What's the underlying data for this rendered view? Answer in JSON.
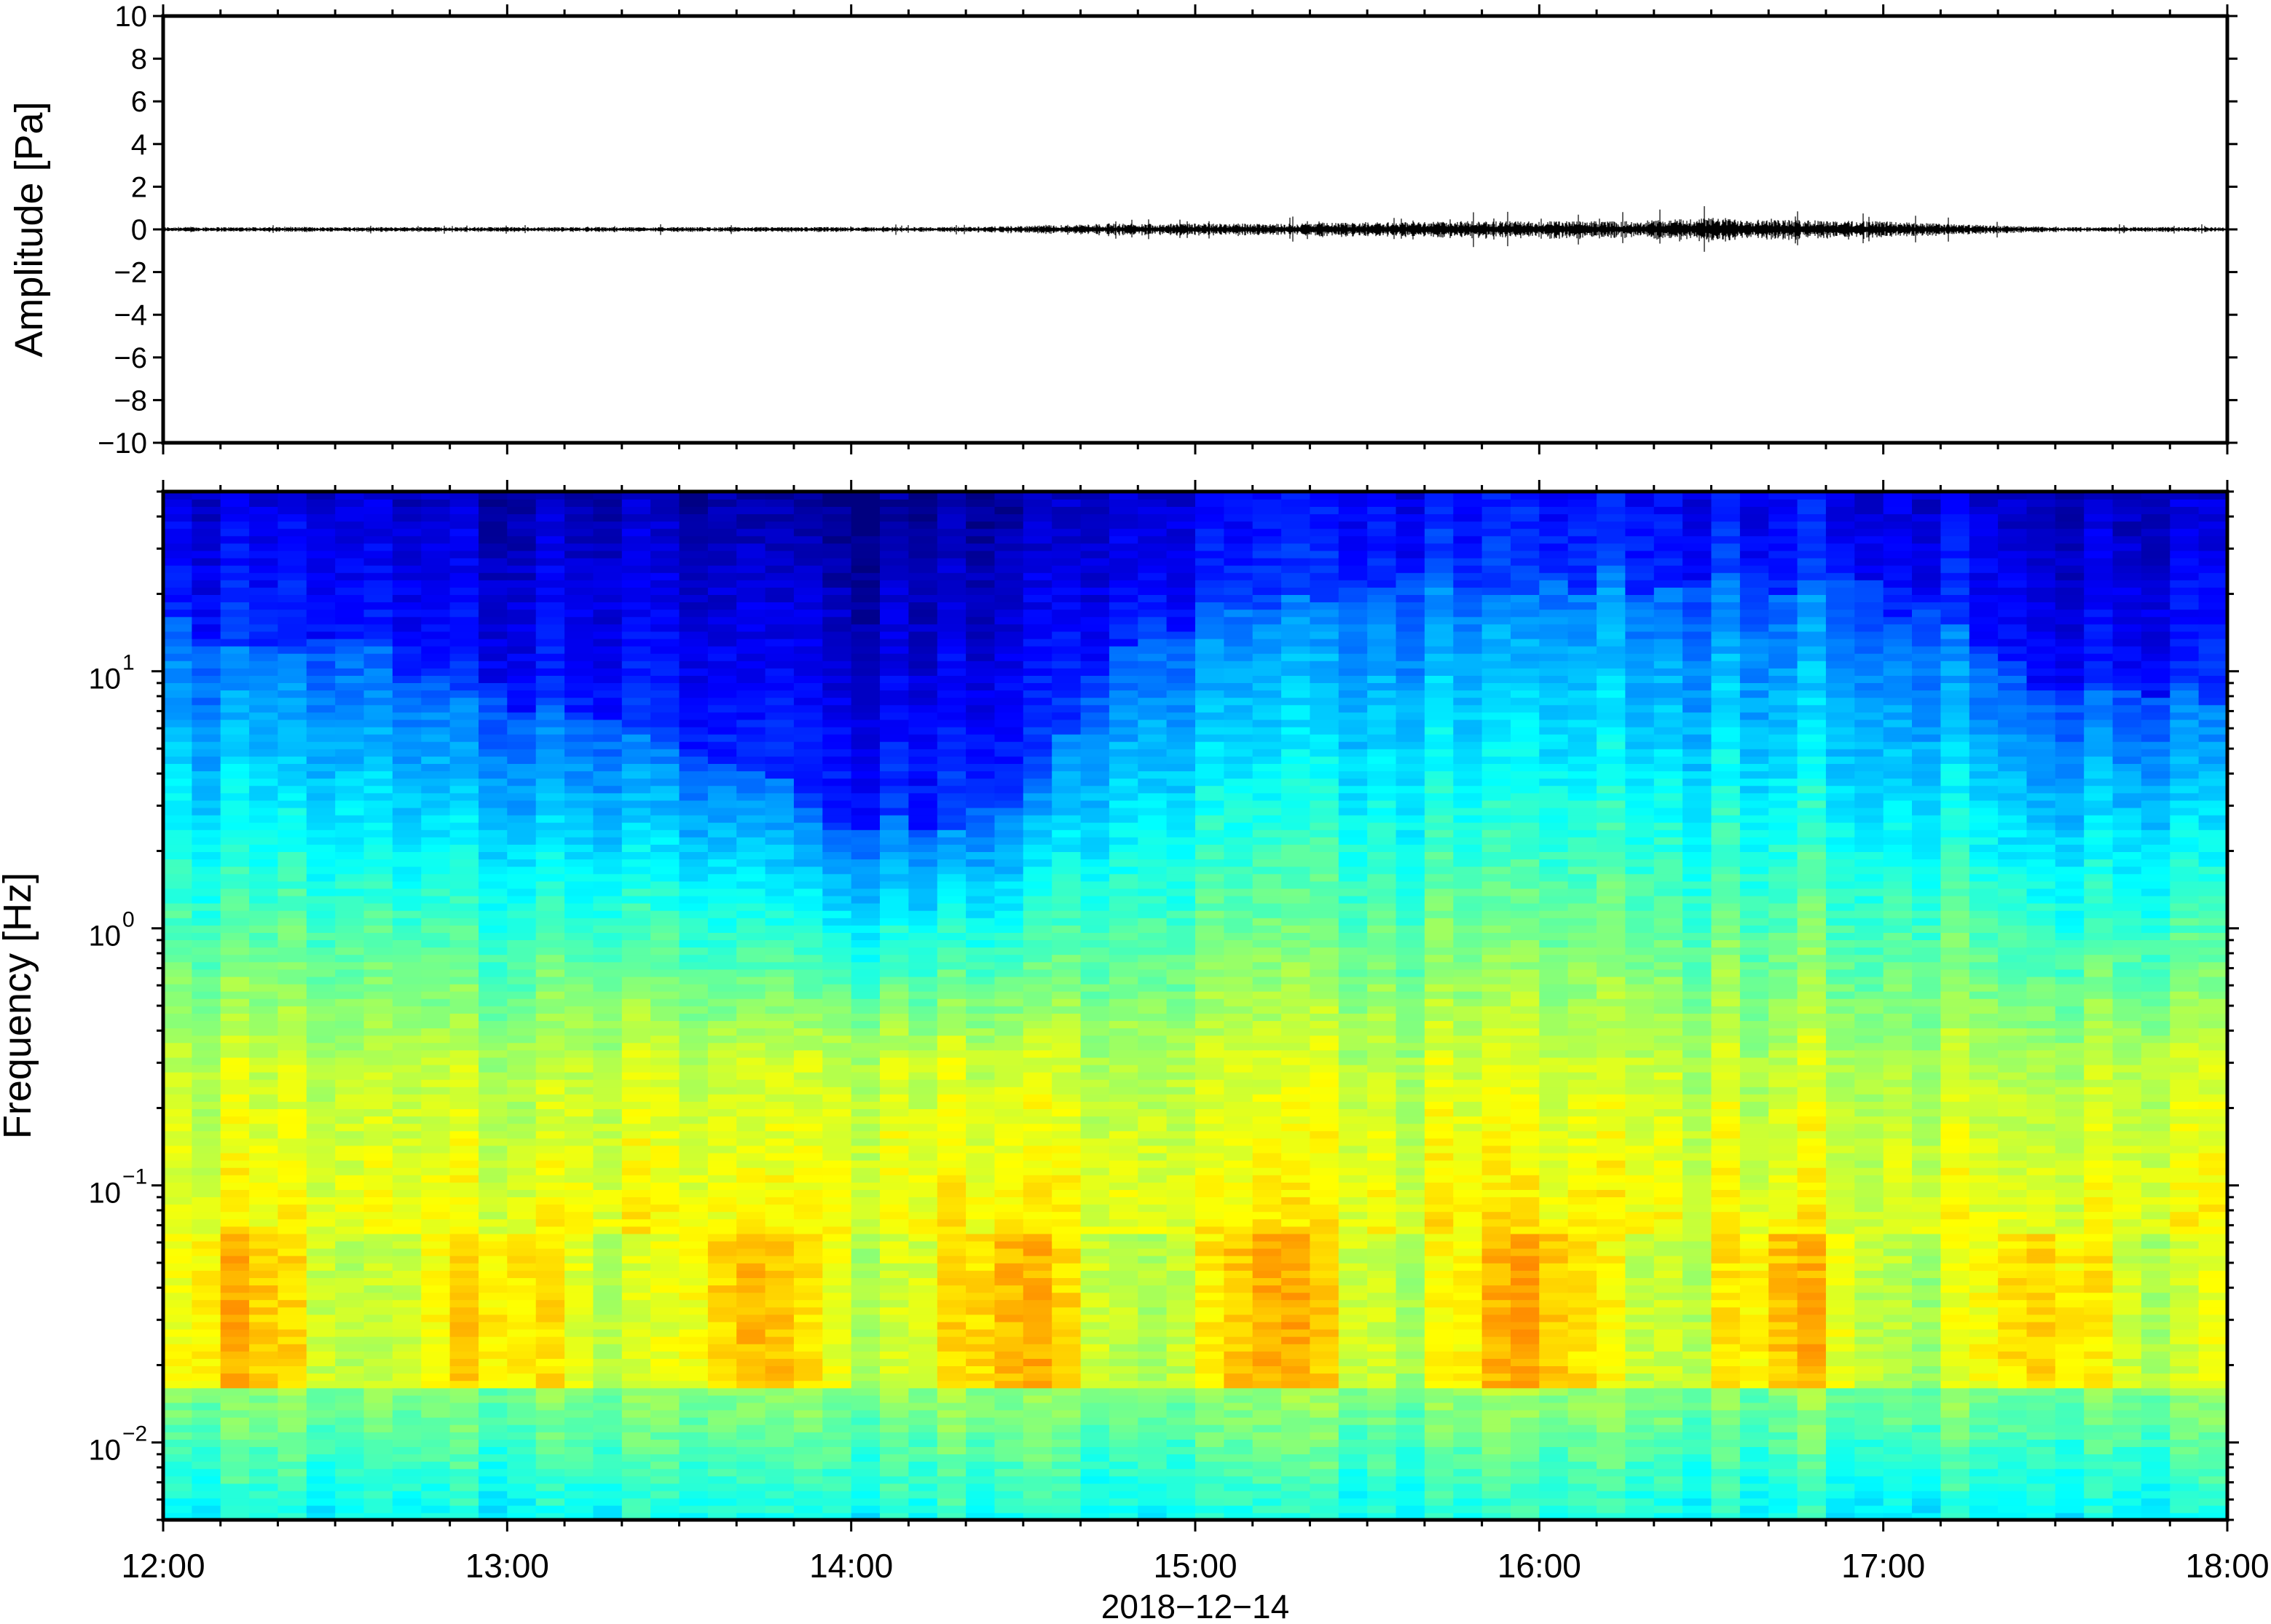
{
  "chart_data": [
    {
      "type": "line",
      "title": "",
      "ylabel": "Amplitude [Pa]",
      "xlim": [
        "12:00",
        "18:00"
      ],
      "ylim": [
        -10,
        10
      ],
      "y_ticks": [
        10,
        8,
        6,
        4,
        2,
        0,
        -2,
        -4,
        -6,
        -8,
        -10
      ],
      "y_tick_labels": [
        "10",
        "8",
        "6",
        "4",
        "2",
        "0",
        "−2",
        "−4",
        "−6",
        "−8",
        "−10"
      ],
      "series": [
        {
          "x_hours": [
            12.0,
            12.25,
            12.5,
            12.75,
            13.0,
            13.25,
            13.5,
            13.75,
            14.0,
            14.25,
            14.5,
            14.75,
            15.0,
            15.25,
            15.5,
            15.75,
            16.0,
            16.25,
            16.5,
            16.75,
            17.0,
            17.25,
            17.5,
            17.75,
            18.0
          ],
          "envelope_pa": [
            0.1,
            0.1,
            0.1,
            0.1,
            0.1,
            0.1,
            0.1,
            0.1,
            0.1,
            0.1,
            0.15,
            0.25,
            0.25,
            0.25,
            0.3,
            0.35,
            0.35,
            0.35,
            0.5,
            0.4,
            0.35,
            0.2,
            0.1,
            0.1,
            0.1
          ]
        }
      ],
      "grid": false
    },
    {
      "type": "heatmap",
      "title": "",
      "ylabel": "Frequency [Hz]",
      "xlabel": "2018−12−14",
      "y_scale": "log",
      "ylim": [
        0.005,
        50
      ],
      "y_tick_bases": [
        "10",
        "10",
        "10",
        "10"
      ],
      "y_tick_exponents": [
        "1",
        "0",
        "−1",
        "−2"
      ],
      "y_tick_values": [
        10,
        1,
        0.1,
        0.01
      ],
      "x_tick_labels": [
        "12:00",
        "13:00",
        "14:00",
        "15:00",
        "16:00",
        "17:00",
        "18:00"
      ],
      "colormap": "jet",
      "time_columns_hours": [
        12.0,
        12.5,
        13.0,
        13.5,
        14.0,
        14.5,
        15.0,
        15.5,
        16.0,
        16.5,
        17.0,
        17.5,
        18.0
      ],
      "dark_blue_upper_edge_hz": [
        15,
        12,
        8,
        5,
        2.5,
        3,
        18,
        22,
        22,
        25,
        20,
        8,
        8
      ],
      "grid": false
    }
  ]
}
